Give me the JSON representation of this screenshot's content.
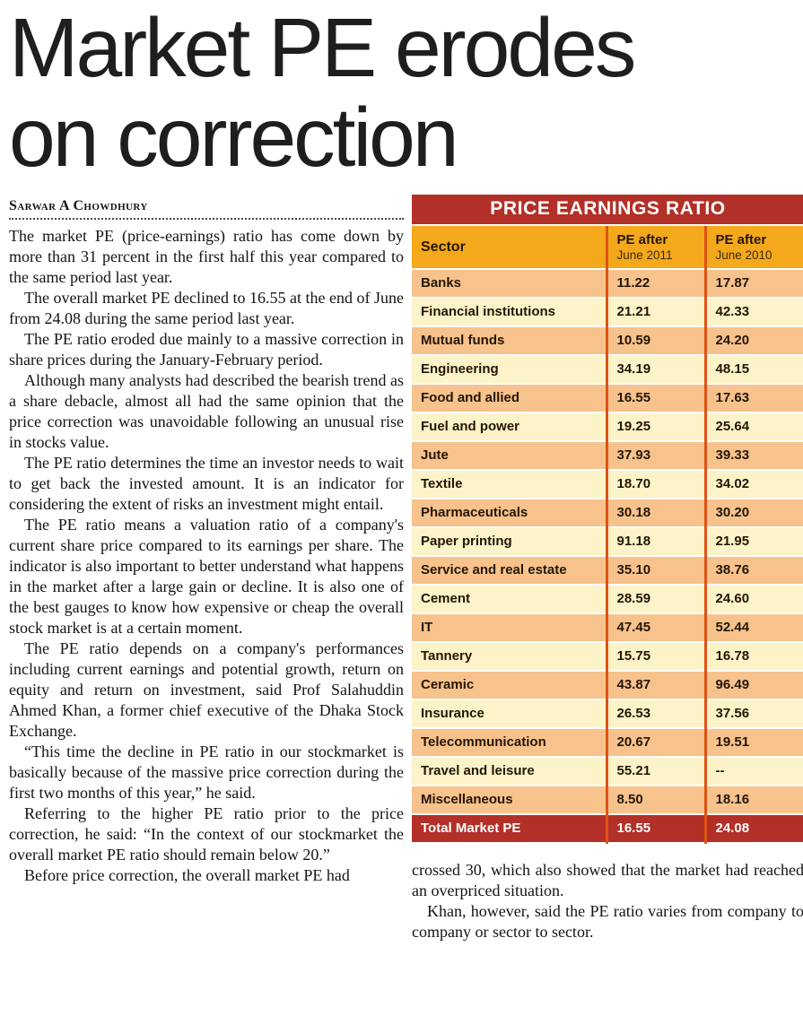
{
  "article": {
    "title_line1": "Market PE erodes",
    "title_line2": "on correction",
    "byline": "Sarwar A Chowdhury",
    "paragraphs": [
      "The market PE (price-earnings) ratio has come down by more than 31 percent in the first half this year compared to the same period last year.",
      "The overall market PE declined to 16.55 at the end of June from 24.08 during the same period last year.",
      "The PE ratio eroded due mainly to a massive correction in share prices during the January-February period.",
      "Although many analysts had described the bearish trend as a share debacle, almost all had the same opinion that the price correction was unavoidable following an unusual rise in stocks value.",
      "The PE ratio determines the time an investor needs to wait to get back the invested amount. It is an indicator for considering the extent of risks an investment might entail.",
      "The PE ratio means a valuation ratio of a company's current share price compared to its earnings per share. The indicator is also important to better understand what happens in the market after a large gain or decline. It is also one of the best gauges to know how expensive or cheap the overall stock market is at a certain moment.",
      "The PE ratio depends on a company's performances including current earnings and potential growth, return on equity and return on investment, said Prof Salahuddin Ahmed Khan, a former chief executive of the Dhaka Stock Exchange.",
      "“This time the decline in PE ratio in our stockmarket is basically because of the massive price correction during the first two months of this year,” he said.",
      "Referring to the higher PE ratio prior to the price correction, he said: “In the context of our stockmarket the overall market PE ratio should remain below 20.”",
      "Before price correction, the overall market PE had"
    ],
    "continuation_paragraphs": [
      "crossed 30, which also showed that the market had reached an overpriced situation.",
      "Khan, however, said the PE ratio varies from company to company or sector to sector."
    ]
  },
  "table": {
    "title": "PRICE EARNINGS RATIO",
    "columns": {
      "sector": "Sector",
      "col1_label": "PE after",
      "col1_sub": "June 2011",
      "col2_label": "PE after",
      "col2_sub": "June 2010"
    },
    "rows": [
      {
        "sector": "Banks",
        "pe2011": "11.22",
        "pe2010": "17.87"
      },
      {
        "sector": "Financial institutions",
        "pe2011": "21.21",
        "pe2010": "42.33"
      },
      {
        "sector": "Mutual funds",
        "pe2011": "10.59",
        "pe2010": "24.20"
      },
      {
        "sector": "Engineering",
        "pe2011": "34.19",
        "pe2010": "48.15"
      },
      {
        "sector": "Food and allied",
        "pe2011": "16.55",
        "pe2010": "17.63"
      },
      {
        "sector": "Fuel and power",
        "pe2011": "19.25",
        "pe2010": "25.64"
      },
      {
        "sector": "Jute",
        "pe2011": "37.93",
        "pe2010": "39.33"
      },
      {
        "sector": "Textile",
        "pe2011": "18.70",
        "pe2010": "34.02"
      },
      {
        "sector": "Pharmaceuticals",
        "pe2011": "30.18",
        "pe2010": "30.20"
      },
      {
        "sector": "Paper printing",
        "pe2011": "91.18",
        "pe2010": "21.95"
      },
      {
        "sector": "Service and real estate",
        "pe2011": "35.10",
        "pe2010": "38.76"
      },
      {
        "sector": "Cement",
        "pe2011": "28.59",
        "pe2010": "24.60"
      },
      {
        "sector": "IT",
        "pe2011": "47.45",
        "pe2010": "52.44"
      },
      {
        "sector": "Tannery",
        "pe2011": "15.75",
        "pe2010": "16.78"
      },
      {
        "sector": "Ceramic",
        "pe2011": "43.87",
        "pe2010": "96.49"
      },
      {
        "sector": "Insurance",
        "pe2011": "26.53",
        "pe2010": "37.56"
      },
      {
        "sector": "Telecommunication",
        "pe2011": "20.67",
        "pe2010": "19.51"
      },
      {
        "sector": "Travel and leisure",
        "pe2011": "55.21",
        "pe2010": "--"
      },
      {
        "sector": "Miscellaneous",
        "pe2011": "8.50",
        "pe2010": "18.16"
      }
    ],
    "total": {
      "sector": "Total Market PE",
      "pe2011": "16.55",
      "pe2010": "24.08"
    }
  },
  "colors": {
    "header_red": "#b23028",
    "header_orange": "#f4a81b",
    "row_peach": "#f7c28c",
    "row_cream": "#fcf3c8",
    "divider": "#de5315",
    "table_text": "#241605"
  }
}
